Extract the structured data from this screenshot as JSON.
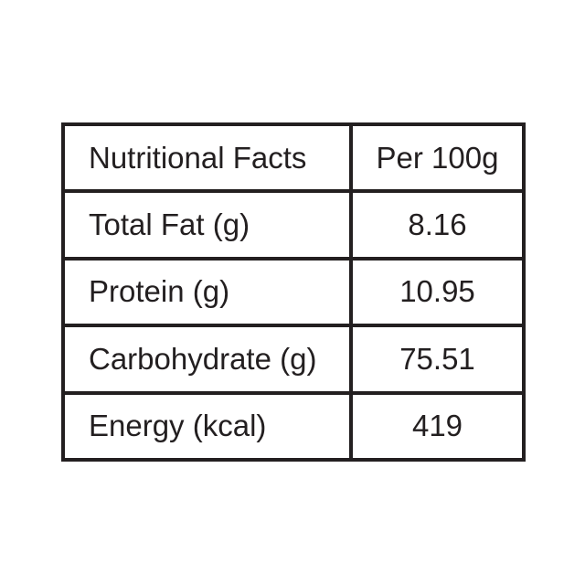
{
  "table": {
    "header": [
      "Nutritional Facts",
      "Per 100g"
    ],
    "rows": [
      [
        "Total Fat (g)",
        "8.16"
      ],
      [
        "Protein (g)",
        "10.95"
      ],
      [
        "Carbohydrate (g)",
        "75.51"
      ],
      [
        "Energy (kcal)",
        "419"
      ]
    ]
  }
}
